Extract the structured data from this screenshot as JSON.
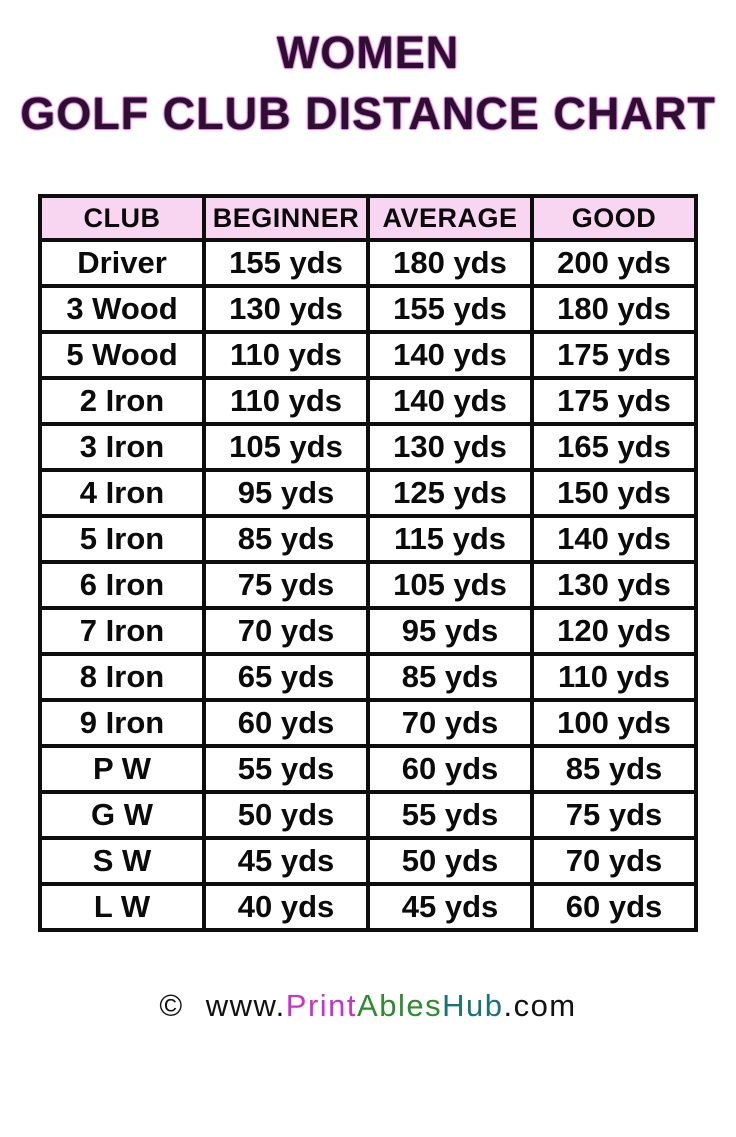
{
  "title": {
    "line1": "WOMEN",
    "line2": "GOLF CLUB DISTANCE CHART"
  },
  "table": {
    "headers": [
      "CLUB",
      "BEGINNER",
      "AVERAGE",
      "GOOD"
    ],
    "rows": [
      [
        "Driver",
        "155 yds",
        "180 yds",
        "200 yds"
      ],
      [
        "3 Wood",
        "130 yds",
        "155 yds",
        "180 yds"
      ],
      [
        "5 Wood",
        "110 yds",
        "140 yds",
        "175 yds"
      ],
      [
        "2 Iron",
        "110 yds",
        "140 yds",
        "175 yds"
      ],
      [
        "3 Iron",
        "105 yds",
        "130 yds",
        "165 yds"
      ],
      [
        "4 Iron",
        "95 yds",
        "125 yds",
        "150 yds"
      ],
      [
        "5 Iron",
        "85 yds",
        "115 yds",
        "140 yds"
      ],
      [
        "6 Iron",
        "75 yds",
        "105 yds",
        "130 yds"
      ],
      [
        "7 Iron",
        "70 yds",
        "95 yds",
        "120 yds"
      ],
      [
        "8 Iron",
        "65 yds",
        "85 yds",
        "110 yds"
      ],
      [
        "9 Iron",
        "60 yds",
        "70 yds",
        "100 yds"
      ],
      [
        "P W",
        "55 yds",
        "60 yds",
        "85 yds"
      ],
      [
        "G W",
        "50 yds",
        "55 yds",
        "75 yds"
      ],
      [
        "S W",
        "45 yds",
        "50 yds",
        "70 yds"
      ],
      [
        "L W",
        "40 yds",
        "45 yds",
        "60 yds"
      ]
    ]
  },
  "chart_data": {
    "type": "table",
    "title": "WOMEN GOLF CLUB DISTANCE CHART",
    "columns": [
      "CLUB",
      "BEGINNER",
      "AVERAGE",
      "GOOD"
    ],
    "unit": "yds",
    "rows": [
      {
        "club": "Driver",
        "beginner": 155,
        "average": 180,
        "good": 200
      },
      {
        "club": "3 Wood",
        "beginner": 130,
        "average": 155,
        "good": 180
      },
      {
        "club": "5 Wood",
        "beginner": 110,
        "average": 140,
        "good": 175
      },
      {
        "club": "2 Iron",
        "beginner": 110,
        "average": 140,
        "good": 175
      },
      {
        "club": "3 Iron",
        "beginner": 105,
        "average": 130,
        "good": 165
      },
      {
        "club": "4 Iron",
        "beginner": 95,
        "average": 125,
        "good": 150
      },
      {
        "club": "5 Iron",
        "beginner": 85,
        "average": 115,
        "good": 140
      },
      {
        "club": "6 Iron",
        "beginner": 75,
        "average": 105,
        "good": 130
      },
      {
        "club": "7 Iron",
        "beginner": 70,
        "average": 95,
        "good": 120
      },
      {
        "club": "8 Iron",
        "beginner": 65,
        "average": 85,
        "good": 110
      },
      {
        "club": "9 Iron",
        "beginner": 60,
        "average": 70,
        "good": 100
      },
      {
        "club": "P W",
        "beginner": 55,
        "average": 60,
        "good": 85
      },
      {
        "club": "G W",
        "beginner": 50,
        "average": 55,
        "good": 75
      },
      {
        "club": "S W",
        "beginner": 45,
        "average": 50,
        "good": 70
      },
      {
        "club": "L W",
        "beginner": 40,
        "average": 45,
        "good": 60
      }
    ]
  },
  "footer": {
    "segments": [
      {
        "name": "copyright-symbol",
        "text": "©",
        "color": "#121212"
      },
      {
        "name": "url-www",
        "text": "www.",
        "color": "#121212"
      },
      {
        "name": "url-print",
        "text": "Print",
        "color": "#cb32cb"
      },
      {
        "name": "url-ables",
        "text": "Ables",
        "color": "#2e8b2e"
      },
      {
        "name": "url-hub",
        "text": "Hub",
        "color": "#19727a"
      },
      {
        "name": "url-com",
        "text": ".com",
        "color": "#121212"
      }
    ]
  },
  "colors": {
    "header_bg": "#f8d6f2",
    "border": "#0e0e0e",
    "title_text": "#2b1030",
    "title_glow": "#e06ee0",
    "page_bg": "#ffffff"
  }
}
